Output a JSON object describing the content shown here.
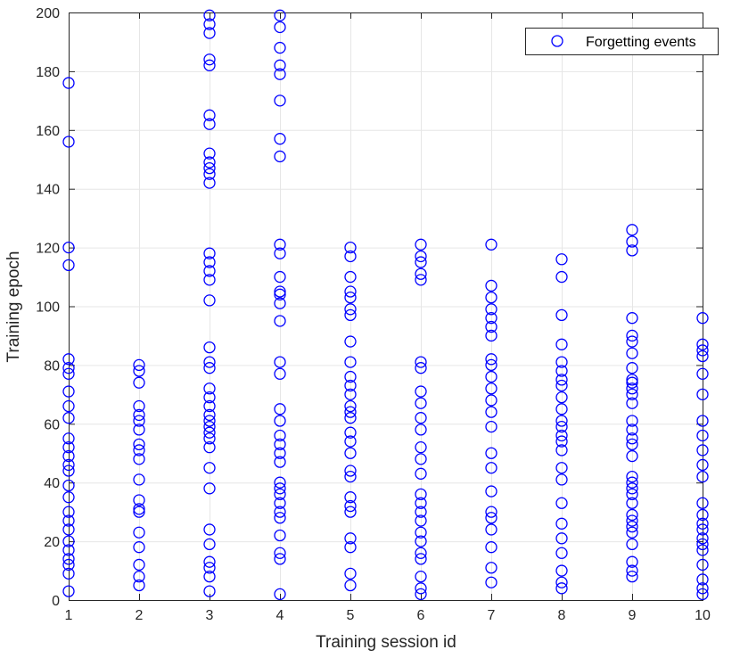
{
  "chart_data": {
    "type": "scatter",
    "title": "",
    "xlabel": "Training session id",
    "ylabel": "Training epoch",
    "xlim": [
      1,
      10
    ],
    "ylim": [
      0,
      200
    ],
    "xticks": [
      "1",
      "2",
      "3",
      "4",
      "5",
      "6",
      "7",
      "8",
      "9",
      "10"
    ],
    "yticks": [
      "0",
      "20",
      "40",
      "60",
      "80",
      "100",
      "120",
      "140",
      "160",
      "180",
      "200"
    ],
    "grid": true,
    "legend_position": "top-right",
    "marker_color": "#0000ff",
    "series": [
      {
        "name": "Forgetting events",
        "marker": "circle",
        "points": [
          [
            1,
            3
          ],
          [
            1,
            9
          ],
          [
            1,
            12
          ],
          [
            1,
            14
          ],
          [
            1,
            17
          ],
          [
            1,
            20
          ],
          [
            1,
            24
          ],
          [
            1,
            27
          ],
          [
            1,
            30
          ],
          [
            1,
            35
          ],
          [
            1,
            39
          ],
          [
            1,
            44
          ],
          [
            1,
            46
          ],
          [
            1,
            49
          ],
          [
            1,
            52
          ],
          [
            1,
            55
          ],
          [
            1,
            62
          ],
          [
            1,
            66
          ],
          [
            1,
            71
          ],
          [
            1,
            77
          ],
          [
            1,
            79
          ],
          [
            1,
            82
          ],
          [
            1,
            114
          ],
          [
            1,
            120
          ],
          [
            1,
            156
          ],
          [
            1,
            176
          ],
          [
            2,
            5
          ],
          [
            2,
            8
          ],
          [
            2,
            12
          ],
          [
            2,
            18
          ],
          [
            2,
            23
          ],
          [
            2,
            30
          ],
          [
            2,
            31
          ],
          [
            2,
            34
          ],
          [
            2,
            41
          ],
          [
            2,
            48
          ],
          [
            2,
            51
          ],
          [
            2,
            53
          ],
          [
            2,
            58
          ],
          [
            2,
            61
          ],
          [
            2,
            63
          ],
          [
            2,
            66
          ],
          [
            2,
            74
          ],
          [
            2,
            78
          ],
          [
            2,
            80
          ],
          [
            3,
            3
          ],
          [
            3,
            8
          ],
          [
            3,
            11
          ],
          [
            3,
            13
          ],
          [
            3,
            19
          ],
          [
            3,
            24
          ],
          [
            3,
            38
          ],
          [
            3,
            45
          ],
          [
            3,
            52
          ],
          [
            3,
            55
          ],
          [
            3,
            57
          ],
          [
            3,
            59
          ],
          [
            3,
            61
          ],
          [
            3,
            63
          ],
          [
            3,
            66
          ],
          [
            3,
            69
          ],
          [
            3,
            72
          ],
          [
            3,
            79
          ],
          [
            3,
            81
          ],
          [
            3,
            86
          ],
          [
            3,
            102
          ],
          [
            3,
            109
          ],
          [
            3,
            112
          ],
          [
            3,
            115
          ],
          [
            3,
            118
          ],
          [
            3,
            142
          ],
          [
            3,
            145
          ],
          [
            3,
            147
          ],
          [
            3,
            149
          ],
          [
            3,
            152
          ],
          [
            3,
            162
          ],
          [
            3,
            165
          ],
          [
            3,
            182
          ],
          [
            3,
            184
          ],
          [
            3,
            193
          ],
          [
            3,
            196
          ],
          [
            3,
            199
          ],
          [
            4,
            2
          ],
          [
            4,
            14
          ],
          [
            4,
            16
          ],
          [
            4,
            22
          ],
          [
            4,
            28
          ],
          [
            4,
            30
          ],
          [
            4,
            33
          ],
          [
            4,
            36
          ],
          [
            4,
            38
          ],
          [
            4,
            40
          ],
          [
            4,
            47
          ],
          [
            4,
            50
          ],
          [
            4,
            53
          ],
          [
            4,
            56
          ],
          [
            4,
            61
          ],
          [
            4,
            65
          ],
          [
            4,
            77
          ],
          [
            4,
            81
          ],
          [
            4,
            95
          ],
          [
            4,
            101
          ],
          [
            4,
            104
          ],
          [
            4,
            105
          ],
          [
            4,
            110
          ],
          [
            4,
            118
          ],
          [
            4,
            121
          ],
          [
            4,
            151
          ],
          [
            4,
            157
          ],
          [
            4,
            170
          ],
          [
            4,
            179
          ],
          [
            4,
            182
          ],
          [
            4,
            188
          ],
          [
            4,
            195
          ],
          [
            4,
            199
          ],
          [
            5,
            5
          ],
          [
            5,
            9
          ],
          [
            5,
            18
          ],
          [
            5,
            21
          ],
          [
            5,
            30
          ],
          [
            5,
            32
          ],
          [
            5,
            35
          ],
          [
            5,
            42
          ],
          [
            5,
            44
          ],
          [
            5,
            50
          ],
          [
            5,
            54
          ],
          [
            5,
            57
          ],
          [
            5,
            62
          ],
          [
            5,
            64
          ],
          [
            5,
            66
          ],
          [
            5,
            70
          ],
          [
            5,
            73
          ],
          [
            5,
            76
          ],
          [
            5,
            81
          ],
          [
            5,
            88
          ],
          [
            5,
            97
          ],
          [
            5,
            99
          ],
          [
            5,
            103
          ],
          [
            5,
            105
          ],
          [
            5,
            110
          ],
          [
            5,
            117
          ],
          [
            5,
            120
          ],
          [
            6,
            2
          ],
          [
            6,
            4
          ],
          [
            6,
            8
          ],
          [
            6,
            14
          ],
          [
            6,
            16
          ],
          [
            6,
            20
          ],
          [
            6,
            23
          ],
          [
            6,
            27
          ],
          [
            6,
            30
          ],
          [
            6,
            33
          ],
          [
            6,
            36
          ],
          [
            6,
            43
          ],
          [
            6,
            48
          ],
          [
            6,
            52
          ],
          [
            6,
            58
          ],
          [
            6,
            62
          ],
          [
            6,
            67
          ],
          [
            6,
            71
          ],
          [
            6,
            79
          ],
          [
            6,
            81
          ],
          [
            6,
            109
          ],
          [
            6,
            111
          ],
          [
            6,
            115
          ],
          [
            6,
            117
          ],
          [
            6,
            121
          ],
          [
            7,
            6
          ],
          [
            7,
            11
          ],
          [
            7,
            18
          ],
          [
            7,
            24
          ],
          [
            7,
            28
          ],
          [
            7,
            30
          ],
          [
            7,
            37
          ],
          [
            7,
            45
          ],
          [
            7,
            50
          ],
          [
            7,
            59
          ],
          [
            7,
            64
          ],
          [
            7,
            68
          ],
          [
            7,
            72
          ],
          [
            7,
            76
          ],
          [
            7,
            80
          ],
          [
            7,
            82
          ],
          [
            7,
            90
          ],
          [
            7,
            93
          ],
          [
            7,
            96
          ],
          [
            7,
            99
          ],
          [
            7,
            103
          ],
          [
            7,
            107
          ],
          [
            7,
            121
          ],
          [
            8,
            4
          ],
          [
            8,
            6
          ],
          [
            8,
            10
          ],
          [
            8,
            16
          ],
          [
            8,
            21
          ],
          [
            8,
            26
          ],
          [
            8,
            33
          ],
          [
            8,
            41
          ],
          [
            8,
            45
          ],
          [
            8,
            51
          ],
          [
            8,
            54
          ],
          [
            8,
            56
          ],
          [
            8,
            59
          ],
          [
            8,
            61
          ],
          [
            8,
            65
          ],
          [
            8,
            69
          ],
          [
            8,
            73
          ],
          [
            8,
            75
          ],
          [
            8,
            78
          ],
          [
            8,
            81
          ],
          [
            8,
            87
          ],
          [
            8,
            97
          ],
          [
            8,
            110
          ],
          [
            8,
            116
          ],
          [
            9,
            8
          ],
          [
            9,
            10
          ],
          [
            9,
            13
          ],
          [
            9,
            19
          ],
          [
            9,
            23
          ],
          [
            9,
            25
          ],
          [
            9,
            27
          ],
          [
            9,
            29
          ],
          [
            9,
            33
          ],
          [
            9,
            36
          ],
          [
            9,
            38
          ],
          [
            9,
            40
          ],
          [
            9,
            42
          ],
          [
            9,
            49
          ],
          [
            9,
            53
          ],
          [
            9,
            55
          ],
          [
            9,
            58
          ],
          [
            9,
            61
          ],
          [
            9,
            67
          ],
          [
            9,
            70
          ],
          [
            9,
            72
          ],
          [
            9,
            74
          ],
          [
            9,
            75
          ],
          [
            9,
            79
          ],
          [
            9,
            84
          ],
          [
            9,
            88
          ],
          [
            9,
            90
          ],
          [
            9,
            96
          ],
          [
            9,
            119
          ],
          [
            9,
            122
          ],
          [
            9,
            126
          ],
          [
            10,
            2
          ],
          [
            10,
            4
          ],
          [
            10,
            7
          ],
          [
            10,
            12
          ],
          [
            10,
            17
          ],
          [
            10,
            19
          ],
          [
            10,
            21
          ],
          [
            10,
            24
          ],
          [
            10,
            26
          ],
          [
            10,
            29
          ],
          [
            10,
            33
          ],
          [
            10,
            42
          ],
          [
            10,
            46
          ],
          [
            10,
            51
          ],
          [
            10,
            56
          ],
          [
            10,
            61
          ],
          [
            10,
            70
          ],
          [
            10,
            77
          ],
          [
            10,
            83
          ],
          [
            10,
            85
          ],
          [
            10,
            87
          ],
          [
            10,
            96
          ]
        ]
      }
    ]
  }
}
